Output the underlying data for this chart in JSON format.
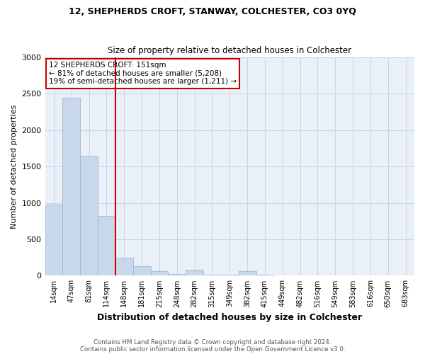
{
  "title": "12, SHEPHERDS CROFT, STANWAY, COLCHESTER, CO3 0YQ",
  "subtitle": "Size of property relative to detached houses in Colchester",
  "xlabel": "Distribution of detached houses by size in Colchester",
  "ylabel": "Number of detached properties",
  "footer_line1": "Contains HM Land Registry data © Crown copyright and database right 2024.",
  "footer_line2": "Contains public sector information licensed under the Open Government Licence v3.0.",
  "annotation_line1": "12 SHEPHERDS CROFT: 151sqm",
  "annotation_line2": "← 81% of detached houses are smaller (5,208)",
  "annotation_line3": "19% of semi-detached houses are larger (1,211) →",
  "bar_color": "#c8d8ea",
  "bar_edge_color": "#9ab0c8",
  "vline_color": "#cc0000",
  "annotation_box_edge_color": "#cc0000",
  "background_color": "#ffffff",
  "plot_bg_color": "#eaf0f8",
  "grid_color": "#c8d4e4",
  "categories": [
    "14sqm",
    "47sqm",
    "81sqm",
    "114sqm",
    "148sqm",
    "181sqm",
    "215sqm",
    "248sqm",
    "282sqm",
    "315sqm",
    "349sqm",
    "382sqm",
    "415sqm",
    "449sqm",
    "482sqm",
    "516sqm",
    "549sqm",
    "583sqm",
    "616sqm",
    "650sqm",
    "683sqm"
  ],
  "values": [
    980,
    2450,
    1650,
    820,
    250,
    130,
    60,
    25,
    80,
    15,
    15,
    60,
    15,
    5,
    5,
    5,
    5,
    5,
    5,
    5,
    5
  ],
  "vline_x_index": 4,
  "ylim": [
    0,
    3000
  ],
  "yticks": [
    0,
    500,
    1000,
    1500,
    2000,
    2500,
    3000
  ]
}
